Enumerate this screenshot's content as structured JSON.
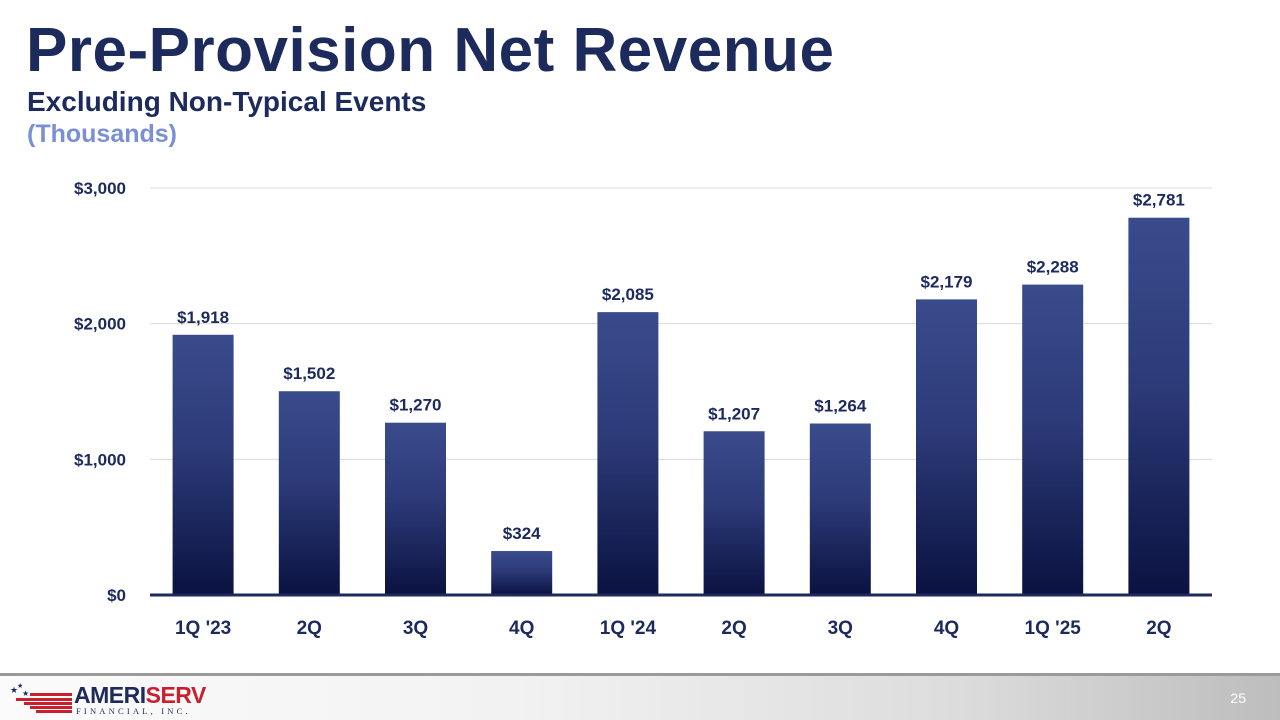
{
  "slide": {
    "title": "Pre-Provision Net Revenue",
    "subtitle": "Excluding Non-Typical Events",
    "units": "(Thousands)",
    "page_number": "25"
  },
  "logo": {
    "name_part1": "AMERI",
    "name_part2": "SERV",
    "tagline": "FINANCIAL, INC."
  },
  "colors": {
    "title": "#1c2a5c",
    "units": "#7b8fd4",
    "bar_top": "#3a4b8c",
    "bar_bottom": "#0a1240"
  },
  "chart_data": {
    "type": "bar",
    "title": "Pre-Provision Net Revenue",
    "categories": [
      "1Q '23",
      "2Q",
      "3Q",
      "4Q",
      "1Q '24",
      "2Q",
      "3Q",
      "4Q",
      "1Q '25",
      "2Q"
    ],
    "values": [
      1918,
      1502,
      1270,
      324,
      2085,
      1207,
      1264,
      2179,
      2288,
      2781
    ],
    "data_labels": [
      "$1,918",
      "$1,502",
      "$1,270",
      "$324",
      "$2,085",
      "$1,207",
      "$1,264",
      "$2,179",
      "$2,288",
      "$2,781"
    ],
    "ylim": [
      0,
      3000
    ],
    "yticks": [
      0,
      1000,
      2000,
      3000
    ],
    "ytick_labels": [
      "$0",
      "$1,000",
      "$2,000",
      "$3,000"
    ],
    "xlabel": "",
    "ylabel": "",
    "grid": true,
    "legend": "none"
  }
}
